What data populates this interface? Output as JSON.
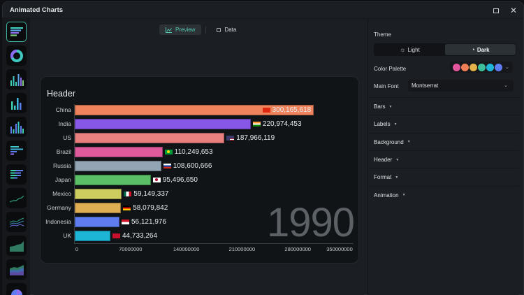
{
  "window": {
    "title": "Animated Charts",
    "maximize_icon": "maximize-icon",
    "close_icon": "close-icon",
    "close_glyph": "✕"
  },
  "rail": {
    "items": [
      {
        "name": "horizontal-bar-race",
        "icon": "bar-race-icon",
        "active": true
      },
      {
        "name": "donut",
        "icon": "donut-icon"
      },
      {
        "name": "vertical-bar-1",
        "icon": "column-chart-icon"
      },
      {
        "name": "vertical-bar-2",
        "icon": "column-chart-icon"
      },
      {
        "name": "vertical-bar-3",
        "icon": "column-chart-icon"
      },
      {
        "name": "horizontal-bar-1",
        "icon": "bar-chart-icon"
      },
      {
        "name": "horizontal-bar-stacked",
        "icon": "stacked-bar-icon"
      },
      {
        "name": "line",
        "icon": "line-chart-icon"
      },
      {
        "name": "multi-line",
        "icon": "multi-line-icon"
      },
      {
        "name": "area",
        "icon": "area-chart-icon"
      },
      {
        "name": "stacked-area",
        "icon": "stacked-area-icon"
      },
      {
        "name": "pie",
        "icon": "pie-chart-icon"
      }
    ]
  },
  "tabs": {
    "preview": "Preview",
    "data": "Data"
  },
  "chart": {
    "header": "Header",
    "year": "1990"
  },
  "chart_data": {
    "type": "bar",
    "orientation": "horizontal",
    "title": "Header",
    "annotation": "1990",
    "categories": [
      "China",
      "India",
      "US",
      "Brazil",
      "Russia",
      "Japan",
      "Mexico",
      "Germany",
      "Indonesia",
      "UK"
    ],
    "values": [
      300165618,
      220974453,
      187966119,
      110249653,
      108600666,
      95496650,
      59149337,
      58079842,
      56121976,
      44733264
    ],
    "value_labels": [
      "300,165,618",
      "220,974,453",
      "187,966,119",
      "110,249,653",
      "108,600,666",
      "95,496,650",
      "59,149,337",
      "58,079,842",
      "56,121,976",
      "44,733,264"
    ],
    "colors": [
      "#ef845c",
      "#8758e8",
      "#e88080",
      "#df5a9b",
      "#93a5b4",
      "#5abf67",
      "#cdcc5e",
      "#dfae52",
      "#5f7df0",
      "#1db5d6"
    ],
    "x_ticks": [
      "0",
      "70000000",
      "140000000",
      "210000000",
      "280000000",
      "350000000"
    ],
    "xlim": [
      0,
      350000000
    ],
    "xlabel": "",
    "ylabel": "",
    "grid": false,
    "legend": "none"
  },
  "panel": {
    "theme_label": "Theme",
    "theme_light": "Light",
    "theme_dark": "Dark",
    "theme_selected": "Dark",
    "palette_label": "Color Palette",
    "palette": [
      "#e2559c",
      "#ef7e57",
      "#e4b04a",
      "#3ebf9b",
      "#1fb4d8",
      "#5f7df0"
    ],
    "font_label": "Main Font",
    "font_value": "Montserrat",
    "sections": [
      "Bars",
      "Labels",
      "Background",
      "Header",
      "Format",
      "Animation"
    ]
  }
}
